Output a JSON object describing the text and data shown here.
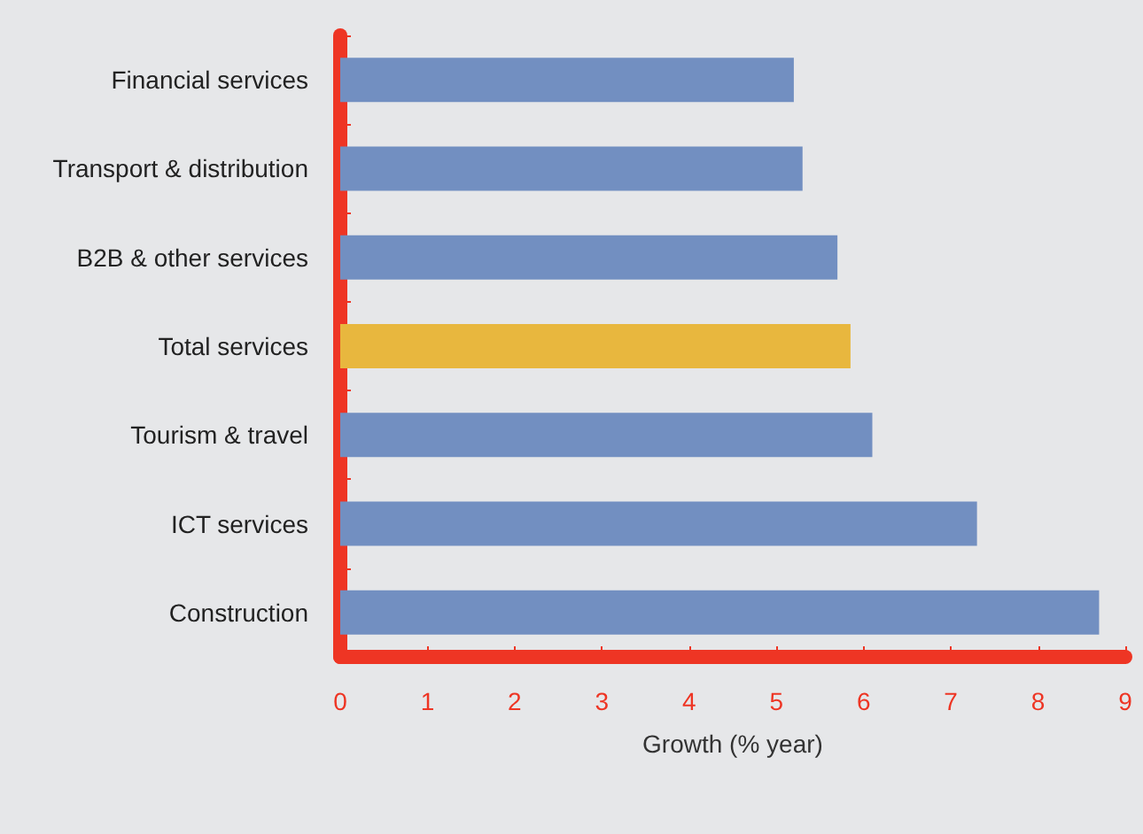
{
  "chart_data": {
    "type": "bar",
    "orientation": "horizontal",
    "xlabel": "Growth (% year)",
    "categories": [
      "Financial services",
      "Transport & distribution",
      "B2B & other services",
      "Total services",
      "Tourism & travel",
      "ICT services",
      "Construction"
    ],
    "values": [
      5.2,
      5.3,
      5.7,
      5.85,
      6.1,
      7.3,
      8.7
    ],
    "colors": [
      "#728fc1",
      "#728fc1",
      "#728fc1",
      "#e8b73e",
      "#728fc1",
      "#728fc1",
      "#728fc1"
    ],
    "xlim": [
      0,
      9
    ],
    "xticks": [
      0,
      1,
      2,
      3,
      4,
      5,
      6,
      7,
      8,
      9
    ],
    "grid": false
  }
}
